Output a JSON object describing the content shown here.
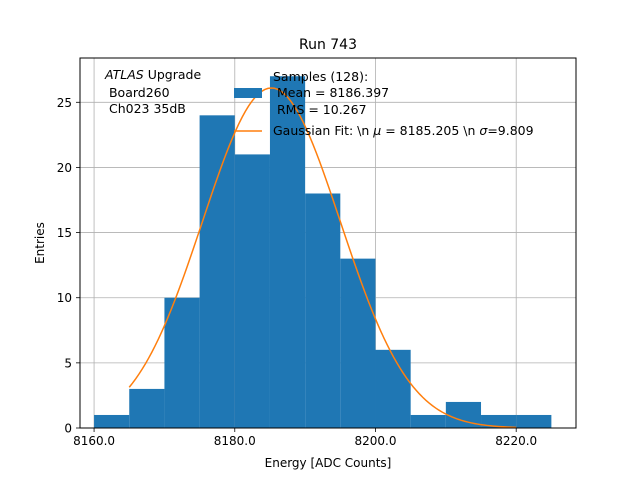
{
  "chart_data": {
    "type": "bar",
    "title": "Run 743",
    "xlabel": "Energy [ADC Counts]",
    "ylabel": "Entries",
    "xlim": [
      8158.0,
      8228.5
    ],
    "ylim": [
      0,
      28.4
    ],
    "grid": true,
    "xticks": [
      8160.0,
      8180.0,
      8200.0,
      8220.0
    ],
    "xtick_labels": [
      "8160.0",
      "8180.0",
      "8200.0",
      "8220.0"
    ],
    "yticks": [
      0,
      5,
      10,
      15,
      20,
      25
    ],
    "ytick_labels": [
      "0",
      "5",
      "10",
      "15",
      "20",
      "25"
    ],
    "bin_edges": [
      8160,
      8165,
      8170,
      8175,
      8180,
      8185,
      8190,
      8195,
      8200,
      8205,
      8210,
      8215,
      8220,
      8225
    ],
    "values": [
      1,
      3,
      10,
      24,
      21,
      27,
      18,
      13,
      6,
      1,
      2,
      1,
      1
    ],
    "bar_color": "#1f77b4",
    "fit": {
      "name": "Gaussian Fit",
      "mu": 8185.205,
      "sigma": 9.809,
      "amplitude": 26.1,
      "x_range": [
        8165,
        8220
      ],
      "color": "#ff7f0e"
    },
    "annotation": {
      "line1_italic": "ATLAS",
      "line1_rest": " Upgrade",
      "line2": " Board260",
      "line3": " Ch023 35dB"
    },
    "legend": {
      "placement": "top-right",
      "hist_label_lines": [
        "Samples (128):",
        " Mean = 8186.397",
        " RMS = 10.267"
      ],
      "fit_label_prefix": "Gaussian Fit: \\n ",
      "fit_label_mu_symbol": "μ",
      "fit_label_mu_text": " = 8185.205 \\n ",
      "fit_label_sigma_symbol": "σ",
      "fit_label_sigma_text": "=9.809"
    }
  }
}
